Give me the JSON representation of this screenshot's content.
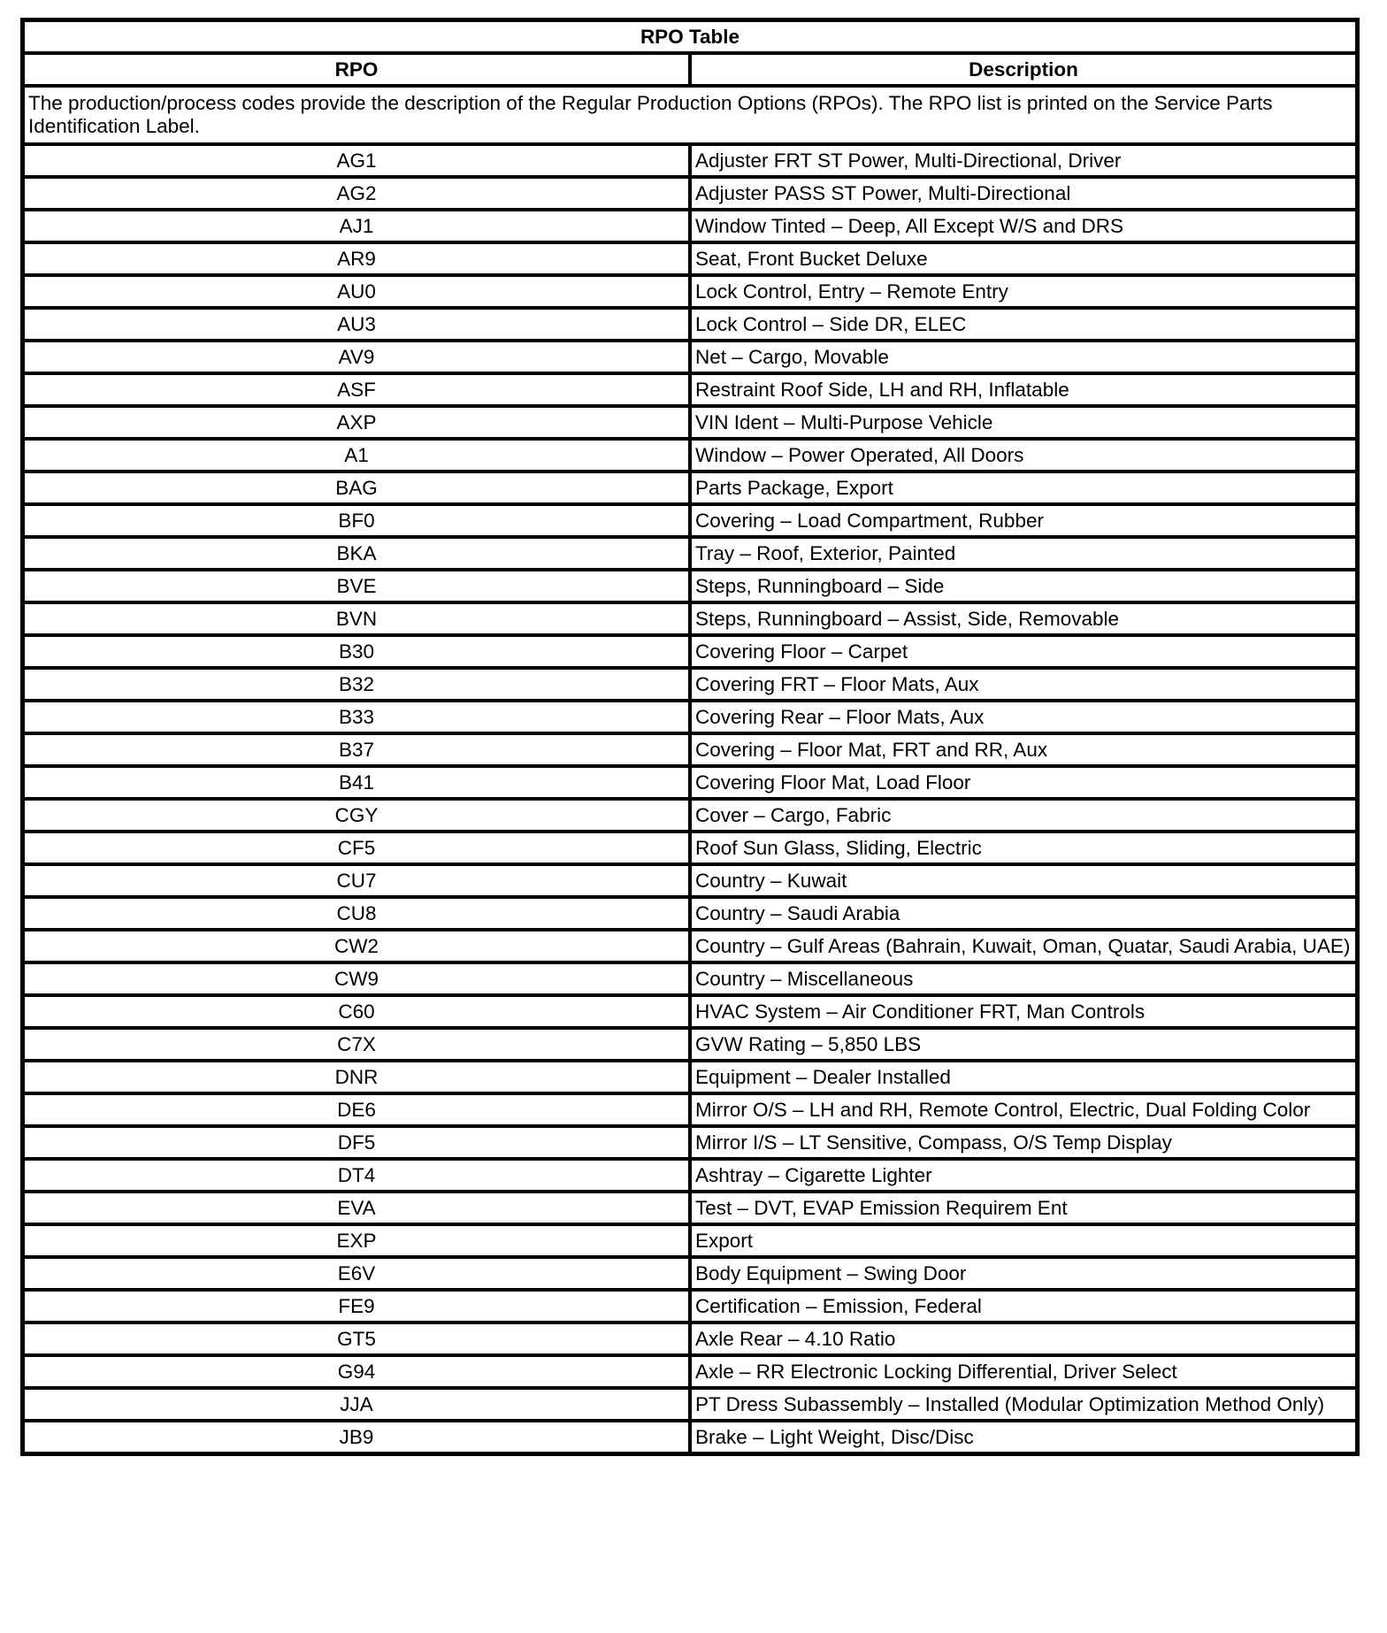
{
  "table": {
    "title": "RPO Table",
    "headers": {
      "rpo": "RPO",
      "description": "Description"
    },
    "intro": "The production/process codes provide the description of the Regular Production Options (RPOs). The RPO list is printed on the Service Parts Identification Label.",
    "rows": [
      {
        "code": "AG1",
        "desc": "Adjuster FRT ST Power, Multi-Directional, Driver"
      },
      {
        "code": "AG2",
        "desc": "Adjuster PASS ST Power, Multi-Directional"
      },
      {
        "code": "AJ1",
        "desc": "Window Tinted – Deep, All Except W/S and DRS"
      },
      {
        "code": "AR9",
        "desc": "Seat, Front Bucket Deluxe"
      },
      {
        "code": "AU0",
        "desc": "Lock Control, Entry – Remote Entry"
      },
      {
        "code": "AU3",
        "desc": "Lock Control – Side DR, ELEC"
      },
      {
        "code": "AV9",
        "desc": "Net – Cargo, Movable"
      },
      {
        "code": "ASF",
        "desc": "Restraint Roof Side, LH and RH, Inflatable"
      },
      {
        "code": "AXP",
        "desc": "VIN Ident – Multi-Purpose Vehicle"
      },
      {
        "code": "A1",
        "desc": "Window – Power Operated, All Doors"
      },
      {
        "code": "BAG",
        "desc": "Parts Package, Export"
      },
      {
        "code": "BF0",
        "desc": "Covering – Load Compartment, Rubber"
      },
      {
        "code": "BKA",
        "desc": "Tray – Roof, Exterior, Painted"
      },
      {
        "code": "BVE",
        "desc": "Steps, Runningboard – Side"
      },
      {
        "code": "BVN",
        "desc": "Steps, Runningboard – Assist, Side, Removable"
      },
      {
        "code": "B30",
        "desc": "Covering Floor – Carpet"
      },
      {
        "code": "B32",
        "desc": "Covering FRT – Floor Mats, Aux"
      },
      {
        "code": "B33",
        "desc": "Covering Rear – Floor Mats, Aux"
      },
      {
        "code": "B37",
        "desc": "Covering – Floor Mat, FRT and RR, Aux"
      },
      {
        "code": "B41",
        "desc": "Covering Floor Mat, Load Floor"
      },
      {
        "code": "CGY",
        "desc": "Cover – Cargo, Fabric"
      },
      {
        "code": "CF5",
        "desc": "Roof Sun Glass, Sliding, Electric"
      },
      {
        "code": "CU7",
        "desc": "Country – Kuwait"
      },
      {
        "code": "CU8",
        "desc": "Country – Saudi Arabia"
      },
      {
        "code": "CW2",
        "desc": "Country – Gulf Areas (Bahrain, Kuwait, Oman, Quatar, Saudi Arabia, UAE)"
      },
      {
        "code": "CW9",
        "desc": "Country – Miscellaneous"
      },
      {
        "code": "C60",
        "desc": "HVAC System – Air Conditioner FRT, Man Controls"
      },
      {
        "code": "C7X",
        "desc": "GVW Rating – 5,850 LBS"
      },
      {
        "code": "DNR",
        "desc": "Equipment – Dealer Installed"
      },
      {
        "code": "DE6",
        "desc": "Mirror O/S – LH and RH, Remote Control, Electric, Dual Folding Color"
      },
      {
        "code": "DF5",
        "desc": "Mirror I/S – LT Sensitive, Compass, O/S Temp Display"
      },
      {
        "code": "DT4",
        "desc": "Ashtray – Cigarette Lighter"
      },
      {
        "code": "EVA",
        "desc": "Test – DVT, EVAP Emission Requirem Ent"
      },
      {
        "code": "EXP",
        "desc": "Export"
      },
      {
        "code": "E6V",
        "desc": "Body Equipment – Swing Door"
      },
      {
        "code": "FE9",
        "desc": "Certification – Emission, Federal"
      },
      {
        "code": "GT5",
        "desc": "Axle Rear – 4.10 Ratio"
      },
      {
        "code": "G94",
        "desc": "Axle – RR Electronic Locking Differential, Driver Select"
      },
      {
        "code": "JJA",
        "desc": "PT Dress Subassembly – Installed (Modular Optimization Method Only)"
      },
      {
        "code": "JB9",
        "desc": "Brake – Light Weight, Disc/Disc"
      }
    ]
  }
}
